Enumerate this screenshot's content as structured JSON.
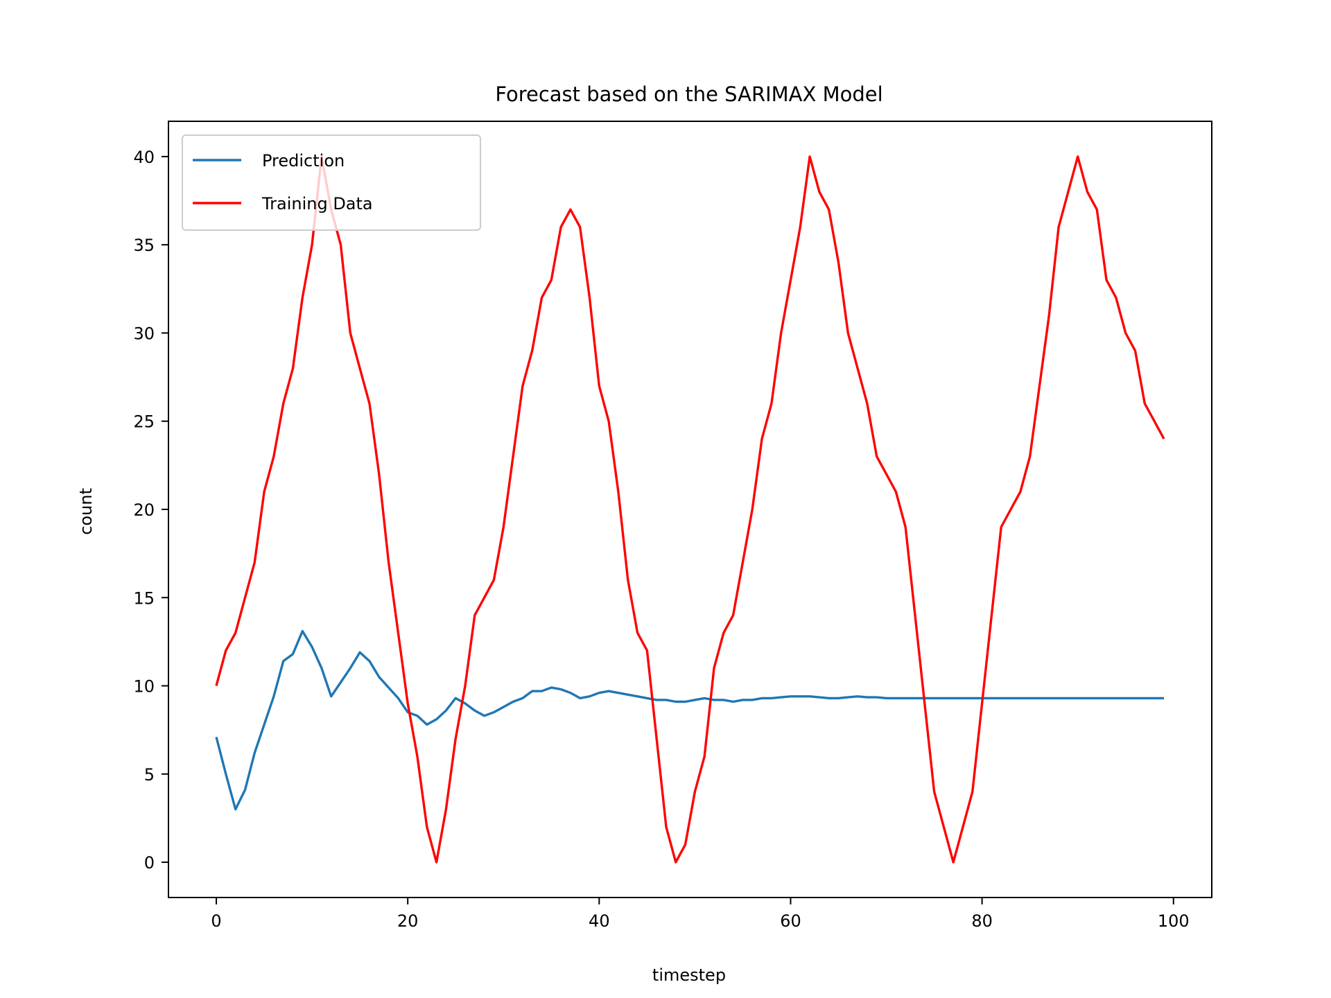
{
  "chart_data": {
    "type": "line",
    "title": "Forecast based on the SARIMAX Model",
    "xlabel": "timestep",
    "ylabel": "count",
    "xlim": [
      -5,
      104
    ],
    "ylim": [
      -2,
      42
    ],
    "xticks": [
      0,
      20,
      40,
      60,
      80,
      100
    ],
    "yticks": [
      0,
      5,
      10,
      15,
      20,
      25,
      30,
      35,
      40
    ],
    "grid": false,
    "legend_position": "upper left",
    "series": [
      {
        "name": "Prediction",
        "color": "#1f77b4",
        "x": [
          0,
          1,
          2,
          3,
          4,
          5,
          6,
          7,
          8,
          9,
          10,
          11,
          12,
          13,
          14,
          15,
          16,
          17,
          18,
          19,
          20,
          21,
          22,
          23,
          24,
          25,
          26,
          27,
          28,
          29,
          30,
          31,
          32,
          33,
          34,
          35,
          36,
          37,
          38,
          39,
          40,
          41,
          42,
          43,
          44,
          45,
          46,
          47,
          48,
          49,
          50,
          51,
          52,
          53,
          54,
          55,
          56,
          57,
          58,
          59,
          60,
          61,
          62,
          63,
          64,
          65,
          66,
          67,
          68,
          69,
          70,
          71,
          72,
          73,
          74,
          75,
          76,
          77,
          78,
          79,
          80,
          81,
          82,
          83,
          84,
          85,
          86,
          87,
          88,
          89,
          90,
          91,
          92,
          93,
          94,
          95,
          96,
          97,
          98,
          99
        ],
        "y": [
          7.1,
          5.0,
          3.0,
          4.1,
          6.2,
          7.8,
          9.4,
          11.4,
          11.8,
          13.1,
          12.2,
          11.0,
          9.4,
          10.2,
          11.0,
          11.9,
          11.4,
          10.5,
          9.9,
          9.3,
          8.5,
          8.3,
          7.8,
          8.1,
          8.6,
          9.3,
          9.0,
          8.6,
          8.3,
          8.5,
          8.8,
          9.1,
          9.3,
          9.7,
          9.7,
          9.9,
          9.8,
          9.6,
          9.3,
          9.4,
          9.6,
          9.7,
          9.6,
          9.5,
          9.4,
          9.3,
          9.2,
          9.2,
          9.1,
          9.1,
          9.2,
          9.3,
          9.2,
          9.2,
          9.1,
          9.2,
          9.2,
          9.3,
          9.3,
          9.35,
          9.4,
          9.4,
          9.4,
          9.35,
          9.3,
          9.3,
          9.35,
          9.4,
          9.35,
          9.35,
          9.3,
          9.3,
          9.3,
          9.3,
          9.3,
          9.3,
          9.3,
          9.3,
          9.3,
          9.3,
          9.3,
          9.3,
          9.3,
          9.3,
          9.3,
          9.3,
          9.3,
          9.3,
          9.3,
          9.3,
          9.3,
          9.3,
          9.3,
          9.3,
          9.3,
          9.3,
          9.3,
          9.3,
          9.3,
          9.3
        ]
      },
      {
        "name": "Training Data",
        "color": "#ff0000",
        "x": [
          0,
          1,
          2,
          3,
          4,
          5,
          6,
          7,
          8,
          9,
          10,
          11,
          12,
          13,
          14,
          15,
          16,
          17,
          18,
          19,
          20,
          21,
          22,
          23,
          24,
          25,
          26,
          27,
          28,
          29,
          30,
          31,
          32,
          33,
          34,
          35,
          36,
          37,
          38,
          39,
          40,
          41,
          42,
          43,
          44,
          45,
          46,
          47,
          48,
          49,
          50,
          51,
          52,
          53,
          54,
          55,
          56,
          57,
          58,
          59,
          60,
          61,
          62,
          63,
          64,
          65,
          66,
          67,
          68,
          69,
          70,
          71,
          72,
          73,
          74,
          75,
          76,
          77,
          78,
          79,
          80,
          81,
          82,
          83,
          84,
          85,
          86,
          87,
          88,
          89,
          90,
          91,
          92,
          93,
          94,
          95,
          96,
          97,
          98,
          99
        ],
        "y": [
          10,
          12,
          13,
          15,
          17,
          21,
          23,
          26,
          28,
          32,
          35,
          40,
          37,
          35,
          30,
          28,
          26,
          22,
          17,
          13,
          9,
          6,
          2,
          0,
          3,
          7,
          10,
          14,
          15,
          16,
          19,
          23,
          27,
          29,
          32,
          33,
          36,
          37,
          36,
          32,
          27,
          25,
          21,
          16,
          13,
          12,
          7,
          2,
          0,
          1,
          4,
          6,
          11,
          13,
          14,
          17,
          20,
          24,
          26,
          30,
          33,
          36,
          40,
          38,
          37,
          34,
          30,
          28,
          26,
          23,
          22,
          21,
          19,
          14,
          9,
          4,
          2,
          0,
          2,
          4,
          9,
          14,
          19,
          20,
          21,
          23,
          27,
          31,
          36,
          38,
          40,
          38,
          37,
          33,
          32,
          30,
          29,
          26,
          25,
          24
        ]
      }
    ]
  }
}
